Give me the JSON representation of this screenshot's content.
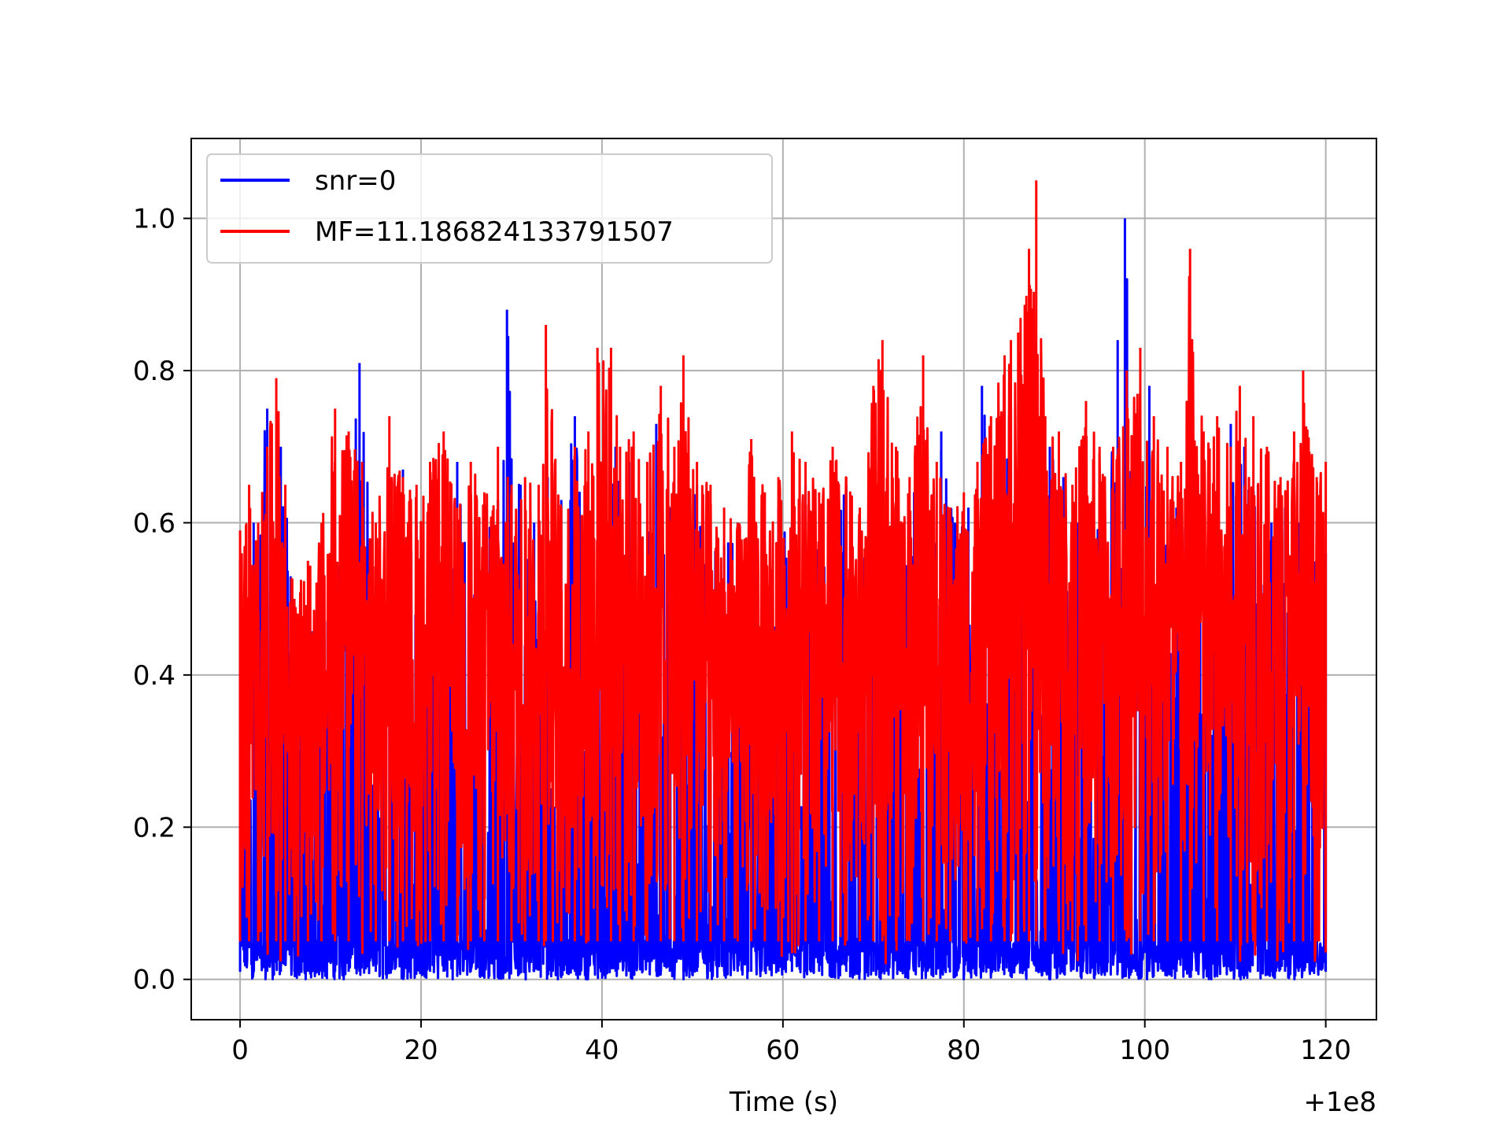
{
  "figure": {
    "background": "#ffffff"
  },
  "chart_data": {
    "type": "line",
    "title": "",
    "xlabel": "Time (s)",
    "ylabel": "",
    "x_offset_label": "+1e8",
    "xlim": [
      -5.4,
      125.6
    ],
    "ylim": [
      -0.053,
      1.105
    ],
    "x_ticks": [
      0,
      20,
      40,
      60,
      80,
      100,
      120
    ],
    "x_tick_labels": [
      "0",
      "20",
      "40",
      "60",
      "80",
      "100",
      "120"
    ],
    "y_ticks": [
      0.0,
      0.2,
      0.4,
      0.6,
      0.8,
      1.0
    ],
    "y_tick_labels": [
      "0.0",
      "0.2",
      "0.4",
      "0.6",
      "0.8",
      "1.0"
    ],
    "grid": true,
    "legend_position": "top-left",
    "series": [
      {
        "name": "snr=0",
        "color": "#0000ff",
        "x": [
          0,
          1.5,
          3,
          4.5,
          6,
          7.5,
          9,
          10.5,
          12,
          13.2,
          15,
          16.5,
          18,
          19.5,
          21,
          22.5,
          24,
          25.5,
          27,
          28.5,
          29.5,
          31,
          32.5,
          34,
          35.5,
          37,
          38.5,
          40,
          41.5,
          43,
          44.5,
          46,
          47.5,
          49,
          50.5,
          52,
          53.5,
          55,
          56.5,
          58,
          59.5,
          61,
          62.5,
          64,
          65.5,
          67,
          68.5,
          70,
          71.5,
          73,
          74.5,
          76,
          77.5,
          79,
          80.5,
          82,
          83.5,
          85,
          86.5,
          88,
          89.5,
          91,
          92.5,
          94,
          95.5,
          97,
          97.8,
          99,
          100.5,
          102,
          103.5,
          105,
          106.5,
          108,
          109.5,
          111,
          112.5,
          114,
          115.5,
          117,
          118.5,
          120
        ],
        "values": [
          0.55,
          0.6,
          0.75,
          0.7,
          0.5,
          0.45,
          0.5,
          0.58,
          0.6,
          0.81,
          0.55,
          0.62,
          0.67,
          0.6,
          0.62,
          0.58,
          0.68,
          0.55,
          0.6,
          0.63,
          0.88,
          0.65,
          0.6,
          0.66,
          0.63,
          0.74,
          0.6,
          0.62,
          0.7,
          0.68,
          0.5,
          0.73,
          0.62,
          0.58,
          0.65,
          0.6,
          0.57,
          0.6,
          0.58,
          0.55,
          0.62,
          0.6,
          0.65,
          0.57,
          0.6,
          0.65,
          0.58,
          0.62,
          0.55,
          0.6,
          0.64,
          0.58,
          0.72,
          0.6,
          0.62,
          0.78,
          0.6,
          0.74,
          0.65,
          0.6,
          0.7,
          0.66,
          0.6,
          0.58,
          0.6,
          0.84,
          1.0,
          0.65,
          0.78,
          0.6,
          0.62,
          0.65,
          0.6,
          0.64,
          0.73,
          0.7,
          0.65,
          0.6,
          0.62,
          0.6,
          0.55,
          0.56
        ]
      },
      {
        "name": "MF=11.186824133791507",
        "color": "#ff0000",
        "x": [
          0,
          1,
          2,
          3,
          4,
          5,
          6,
          7.5,
          9,
          10.5,
          12,
          13.5,
          15,
          16.5,
          18,
          19.5,
          21,
          22.5,
          24,
          25.5,
          27,
          28.5,
          30,
          31.5,
          33,
          33.8,
          35.5,
          37,
          38.5,
          39.5,
          41,
          42,
          43.5,
          45,
          46.5,
          48,
          49,
          50.5,
          52,
          53.5,
          55,
          56.5,
          58,
          59.5,
          61,
          62.5,
          64,
          65.5,
          67,
          68.5,
          70,
          71,
          72.5,
          74,
          75.5,
          77,
          78.5,
          80,
          81.5,
          83,
          84.5,
          85.2,
          86,
          87.2,
          88,
          89,
          90.5,
          92,
          93.5,
          95,
          96.5,
          98,
          99.5,
          101,
          102.5,
          104,
          105,
          106.5,
          108,
          109.5,
          110.5,
          112,
          113.5,
          115,
          116.5,
          117.5,
          119,
          120
        ],
        "values": [
          0.59,
          0.65,
          0.6,
          0.7,
          0.79,
          0.65,
          0.5,
          0.55,
          0.6,
          0.75,
          0.72,
          0.68,
          0.6,
          0.74,
          0.66,
          0.65,
          0.68,
          0.72,
          0.62,
          0.68,
          0.64,
          0.7,
          0.65,
          0.66,
          0.65,
          0.86,
          0.62,
          0.7,
          0.72,
          0.83,
          0.83,
          0.7,
          0.72,
          0.68,
          0.78,
          0.7,
          0.82,
          0.68,
          0.65,
          0.62,
          0.6,
          0.71,
          0.64,
          0.66,
          0.72,
          0.68,
          0.64,
          0.7,
          0.66,
          0.62,
          0.78,
          0.84,
          0.7,
          0.66,
          0.82,
          0.68,
          0.62,
          0.64,
          0.68,
          0.74,
          0.82,
          0.84,
          0.85,
          0.96,
          1.05,
          0.74,
          0.72,
          0.65,
          0.76,
          0.7,
          0.7,
          0.8,
          0.83,
          0.74,
          0.7,
          0.68,
          0.96,
          0.72,
          0.74,
          0.7,
          0.78,
          0.74,
          0.7,
          0.66,
          0.72,
          0.8,
          0.66,
          0.68
        ]
      }
    ]
  }
}
